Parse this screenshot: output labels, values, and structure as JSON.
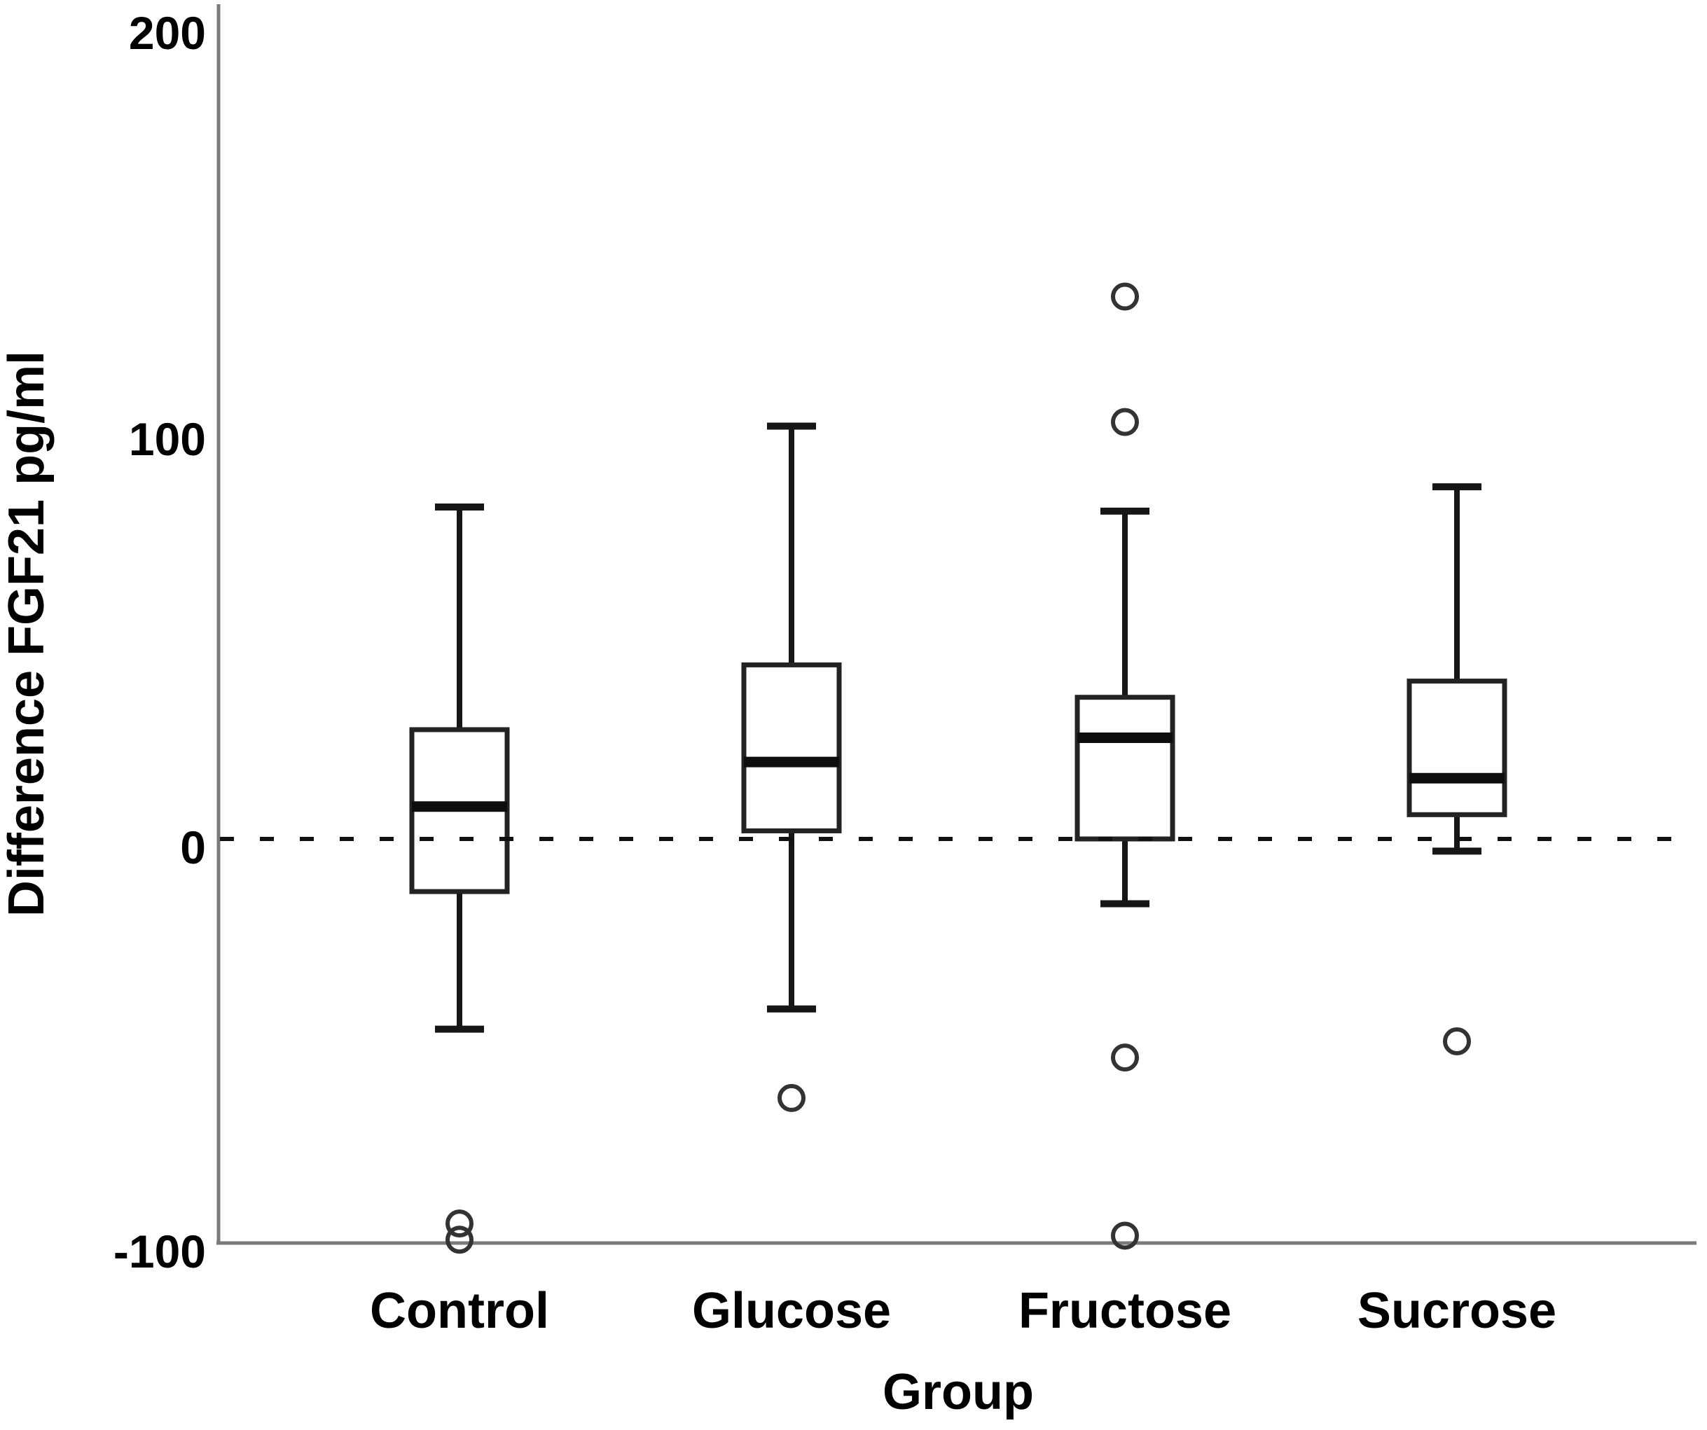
{
  "figure": {
    "background_color": "#ffffff",
    "box_line_color": "#232323",
    "axis_line_color": "#7a7a7a",
    "reference_line_color": "#111111"
  },
  "chart_data": {
    "type": "boxplot",
    "title": "",
    "xlabel": "Group",
    "ylabel": "Difference FGF21 pg/ml",
    "yticks": [
      "200",
      "100",
      "0",
      "-100"
    ],
    "ylim": [
      -100,
      207
    ],
    "grid": false,
    "reference_line": {
      "value": 0,
      "style": "dashed"
    },
    "groups": [
      {
        "label": "Control",
        "whisker_low": -47,
        "q1": -13,
        "median": 8,
        "q3": 27,
        "whisker_high": 82,
        "outliers": [
          -95,
          -99
        ]
      },
      {
        "label": "Glucose",
        "whisker_low": -42,
        "q1": 2,
        "median": 19,
        "q3": 43,
        "whisker_high": 102,
        "outliers": [
          -64
        ]
      },
      {
        "label": "Fructose",
        "whisker_low": -16,
        "q1": 0,
        "median": 25,
        "q3": 35,
        "whisker_high": 81,
        "outliers": [
          134,
          103,
          -54,
          -98
        ]
      },
      {
        "label": "Sucrose",
        "whisker_low": -3,
        "q1": 6,
        "median": 15,
        "q3": 39,
        "whisker_high": 87,
        "outliers": [
          -50
        ]
      }
    ]
  }
}
